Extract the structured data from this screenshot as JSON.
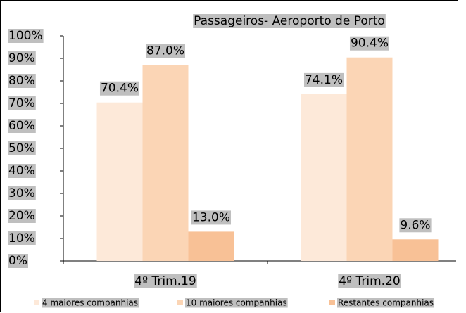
{
  "chart_data": {
    "type": "bar",
    "title": "Passageiros- Aeroporto de Porto",
    "categories": [
      "4º Trim.19",
      "4º Trim.20"
    ],
    "series": [
      {
        "name": "4 maiores companhias",
        "color": "#fde9d9",
        "values": [
          70.4,
          74.1
        ],
        "value_labels": [
          "70.4%",
          "74.1%"
        ]
      },
      {
        "name": "10 maiores companhias",
        "color": "#fbd5b5",
        "values": [
          87.0,
          90.4
        ],
        "value_labels": [
          "87.0%",
          "90.4%"
        ]
      },
      {
        "name": "Restantes companhias",
        "color": "#f8c196",
        "values": [
          13.0,
          9.6
        ],
        "value_labels": [
          "13.0%",
          "9.6%"
        ]
      }
    ],
    "ylim": [
      0,
      100
    ],
    "yticks": [
      {
        "value": 0,
        "label": "0%"
      },
      {
        "value": 10,
        "label": "10%"
      },
      {
        "value": 20,
        "label": "20%"
      },
      {
        "value": 30,
        "label": "30%"
      },
      {
        "value": 40,
        "label": "40%"
      },
      {
        "value": 50,
        "label": "50%"
      },
      {
        "value": 60,
        "label": "60%"
      },
      {
        "value": 70,
        "label": "70%"
      },
      {
        "value": 80,
        "label": "80%"
      },
      {
        "value": 90,
        "label": "90%"
      },
      {
        "value": 100,
        "label": "100%"
      }
    ],
    "legend": "bottom"
  }
}
